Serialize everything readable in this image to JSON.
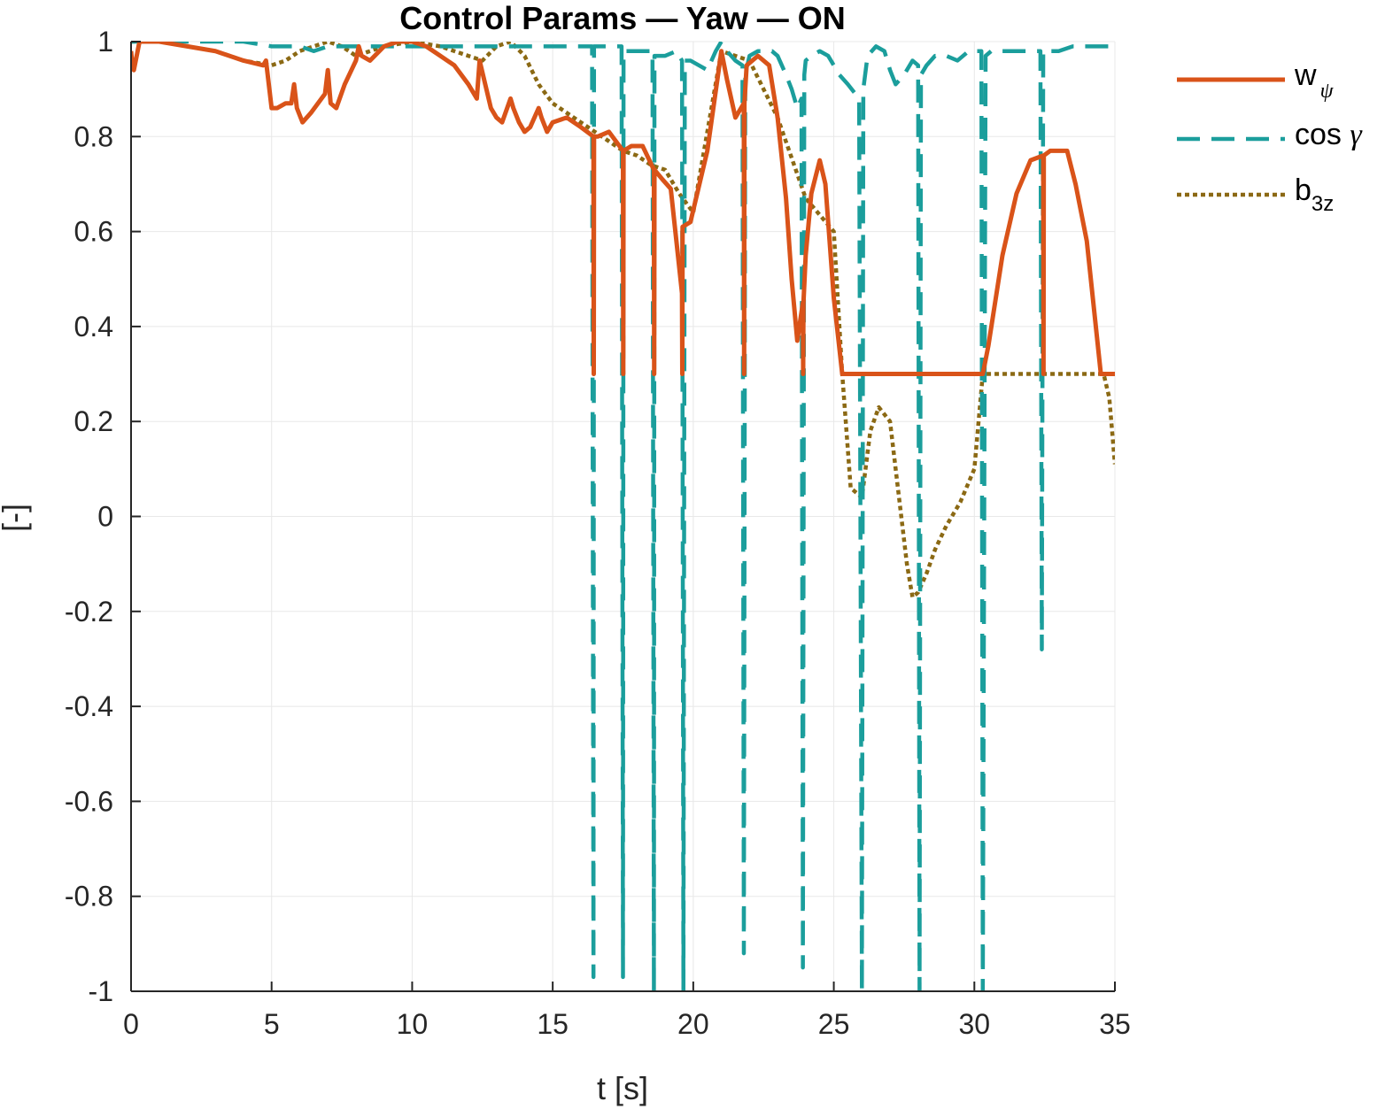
{
  "chart_data": {
    "type": "line",
    "title": "Control Params — Yaw — ON",
    "xlabel": "t [s]",
    "ylabel": "[-]",
    "xlim": [
      0,
      35
    ],
    "ylim": [
      -1,
      1
    ],
    "xticks": [
      "0",
      "5",
      "10",
      "15",
      "20",
      "25",
      "30",
      "35"
    ],
    "yticks": [
      "-1",
      "-0.8",
      "-0.6",
      "-0.4",
      "-0.2",
      "0",
      "0.2",
      "0.4",
      "0.6",
      "0.8",
      "1"
    ],
    "grid": true,
    "legend_position": "outside-top-right",
    "series": [
      {
        "name": "w_psi",
        "legend_main": "w",
        "legend_sub": "ψ",
        "color": "#D95319",
        "style": "solid",
        "x": [
          0,
          0.05,
          0.1,
          0.2,
          0.3,
          0.5,
          1,
          2,
          3,
          4,
          4.7,
          4.8,
          5.0,
          5.2,
          5.5,
          5.7,
          5.8,
          5.9,
          6.1,
          6.4,
          6.9,
          7.0,
          7.1,
          7.3,
          7.6,
          8.0,
          8.1,
          8.2,
          8.5,
          9,
          9.5,
          10,
          10.5,
          11,
          11.5,
          12,
          12.3,
          12.4,
          12.6,
          12.8,
          13,
          13.2,
          13.5,
          13.6,
          13.8,
          14.0,
          14.2,
          14.5,
          14.6,
          14.8,
          15.0,
          15.5,
          16.0,
          16.45,
          16.46,
          16.47,
          16.6,
          17.0,
          17.5,
          17.51,
          17.52,
          17.8,
          18.2,
          18.6,
          18.61,
          18.62,
          18.9,
          19.2,
          19.6,
          19.61,
          19.62,
          19.9,
          20.1,
          20.5,
          21.0,
          21.2,
          21.5,
          21.8,
          21.81,
          21.82,
          21.9,
          22.3,
          22.7,
          23.0,
          23.3,
          23.5,
          23.7,
          23.9,
          23.91,
          23.92,
          24.0,
          24.2,
          24.5,
          24.7,
          25.0,
          25.3,
          25.31,
          30.3,
          30.5,
          31,
          31.5,
          32,
          32.45,
          32.46,
          32.47,
          32.7,
          33,
          33.3,
          33.6,
          34,
          34.5,
          35
        ],
        "y": [
          0.98,
          0.95,
          0.94,
          0.97,
          1.0,
          1.0,
          1.0,
          0.99,
          0.98,
          0.96,
          0.95,
          0.96,
          0.86,
          0.86,
          0.87,
          0.87,
          0.91,
          0.86,
          0.83,
          0.85,
          0.89,
          0.94,
          0.87,
          0.86,
          0.91,
          0.96,
          0.99,
          0.97,
          0.96,
          0.99,
          1.0,
          1.0,
          0.99,
          0.97,
          0.95,
          0.91,
          0.88,
          0.96,
          0.91,
          0.86,
          0.84,
          0.83,
          0.88,
          0.86,
          0.83,
          0.81,
          0.82,
          0.86,
          0.84,
          0.81,
          0.83,
          0.84,
          0.82,
          0.8,
          0.3,
          0.8,
          0.8,
          0.81,
          0.77,
          0.3,
          0.77,
          0.78,
          0.78,
          0.73,
          0.3,
          0.73,
          0.71,
          0.69,
          0.47,
          0.3,
          0.61,
          0.62,
          0.67,
          0.77,
          0.98,
          0.92,
          0.84,
          0.87,
          0.3,
          0.87,
          0.95,
          0.97,
          0.95,
          0.84,
          0.67,
          0.5,
          0.37,
          0.45,
          0.3,
          0.45,
          0.55,
          0.68,
          0.75,
          0.7,
          0.46,
          0.3,
          0.3,
          0.3,
          0.36,
          0.55,
          0.68,
          0.75,
          0.76,
          0.3,
          0.76,
          0.77,
          0.77,
          0.77,
          0.7,
          0.58,
          0.3,
          0.3
        ],
        "legend_index": 0
      },
      {
        "name": "cos_gamma",
        "legend_main": "cos ",
        "legend_sub": "γ",
        "color": "#1B9E9C",
        "style": "dashed",
        "x": [
          0,
          1,
          2,
          3,
          4,
          5,
          5.5,
          6,
          6.5,
          7,
          8,
          9,
          10,
          11,
          12,
          13,
          14,
          15,
          16,
          16.4,
          16.45,
          16.47,
          16.6,
          17.0,
          17.45,
          17.5,
          17.52,
          17.8,
          18.2,
          18.55,
          18.6,
          18.62,
          18.8,
          19.0,
          19.4,
          19.6,
          19.65,
          19.7,
          19.9,
          20.2,
          20.5,
          20.8,
          21.0,
          21.2,
          21.5,
          21.75,
          21.8,
          21.85,
          22.0,
          22.3,
          22.8,
          23.0,
          23.3,
          23.5,
          23.7,
          23.85,
          23.9,
          23.95,
          24.0,
          24.2,
          24.5,
          24.8,
          25.0,
          25.2,
          25.5,
          25.9,
          26.0,
          26.05,
          26.2,
          26.5,
          26.8,
          27.0,
          27.2,
          27.5,
          27.8,
          28.0,
          28.05,
          28.1,
          28.3,
          28.6,
          29.0,
          29.4,
          29.8,
          30.0,
          30.25,
          30.3,
          30.4,
          30.6,
          31,
          31.5,
          32,
          32.35,
          32.4,
          32.45,
          32.6,
          33,
          33.5,
          34,
          34.5,
          35
        ],
        "y": [
          1.0,
          1.0,
          1.0,
          1.0,
          1.0,
          0.99,
          0.99,
          0.99,
          0.98,
          0.99,
          0.99,
          0.99,
          0.99,
          0.99,
          0.99,
          0.99,
          0.99,
          0.99,
          0.99,
          0.99,
          -0.97,
          0.99,
          0.99,
          0.99,
          0.99,
          -0.97,
          0.98,
          0.98,
          0.98,
          0.98,
          -1.0,
          0.97,
          0.97,
          0.97,
          0.98,
          0.96,
          -1.0,
          0.96,
          0.96,
          0.95,
          0.94,
          0.98,
          1.0,
          0.98,
          0.96,
          0.95,
          -0.92,
          0.93,
          0.97,
          0.98,
          0.98,
          0.97,
          0.93,
          0.9,
          0.86,
          0.88,
          -0.95,
          0.93,
          0.96,
          0.97,
          0.98,
          0.97,
          0.95,
          0.93,
          0.91,
          0.88,
          -1.0,
          0.9,
          0.97,
          0.99,
          0.98,
          0.94,
          0.91,
          0.93,
          0.96,
          0.95,
          -1.0,
          0.93,
          0.95,
          0.97,
          0.97,
          0.96,
          0.98,
          0.98,
          0.98,
          -1.0,
          0.97,
          0.98,
          0.98,
          0.98,
          0.98,
          0.98,
          -0.28,
          0.98,
          0.98,
          0.98,
          0.99,
          0.99,
          0.99,
          0.99
        ],
        "legend_index": 1
      },
      {
        "name": "b_3z",
        "legend_main": "b",
        "legend_sub": "3z",
        "color": "#8B6914",
        "style": "dotted",
        "x": [
          0,
          1,
          2,
          3,
          4,
          5,
          5.5,
          6,
          6.5,
          7,
          7.5,
          8,
          9,
          10,
          11,
          12,
          12.5,
          13,
          13.5,
          14,
          14.5,
          15,
          15.5,
          16,
          16.5,
          17,
          17.5,
          18,
          18.5,
          19,
          19.5,
          20,
          21,
          22,
          23,
          24,
          25,
          25.3,
          25.6,
          26.0,
          26.3,
          26.6,
          27.0,
          27.3,
          27.6,
          27.8,
          28.0,
          28.3,
          28.6,
          29.0,
          29.5,
          30.0,
          30.3,
          30.5,
          31,
          32,
          33,
          34,
          34.6,
          34.8,
          35
        ],
        "y": [
          1.0,
          1.0,
          0.99,
          0.98,
          0.96,
          0.95,
          0.96,
          0.98,
          0.99,
          1.0,
          0.99,
          0.97,
          0.99,
          1.0,
          0.99,
          0.97,
          0.96,
          0.99,
          1.0,
          0.97,
          0.91,
          0.87,
          0.85,
          0.83,
          0.81,
          0.79,
          0.77,
          0.76,
          0.74,
          0.73,
          0.68,
          0.64,
          0.98,
          0.96,
          0.84,
          0.67,
          0.6,
          0.3,
          0.06,
          0.04,
          0.18,
          0.23,
          0.2,
          0.05,
          -0.1,
          -0.17,
          -0.16,
          -0.12,
          -0.07,
          -0.02,
          0.03,
          0.1,
          0.3,
          0.3,
          0.3,
          0.3,
          0.3,
          0.3,
          0.3,
          0.25,
          0.11
        ],
        "legend_index": 2
      }
    ]
  }
}
